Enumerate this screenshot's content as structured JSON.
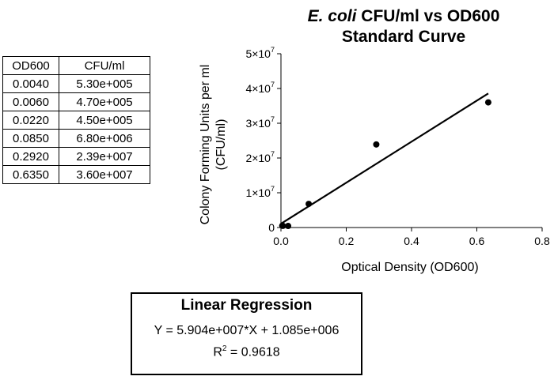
{
  "table": {
    "headers": [
      "OD600",
      "CFU/ml"
    ],
    "rows": [
      [
        "0.0040",
        "5.30e+005"
      ],
      [
        "0.0060",
        "4.70e+005"
      ],
      [
        "0.0220",
        "4.50e+005"
      ],
      [
        "0.0850",
        "6.80e+006"
      ],
      [
        "0.2920",
        "2.39e+007"
      ],
      [
        "0.6350",
        "3.60e+007"
      ]
    ]
  },
  "chart_data": {
    "type": "scatter",
    "title_italic": "E. coli",
    "title_rest": " CFU/ml vs OD600",
    "title_line2": "Standard Curve",
    "xlabel": "Optical Density (OD600)",
    "ylabel_line1": "Colony Forming Units per ml",
    "ylabel_line2": "(CFU/ml)",
    "x": [
      0.004,
      0.006,
      0.022,
      0.085,
      0.292,
      0.635
    ],
    "y": [
      530000,
      470000,
      450000,
      6800000,
      23900000,
      36000000
    ],
    "xlim": [
      0,
      0.8
    ],
    "ylim": [
      0,
      50000000
    ],
    "xticks": [
      0,
      0.2,
      0.4,
      0.6,
      0.8
    ],
    "xtick_labels": [
      "0.0",
      "0.2",
      "0.4",
      "0.6",
      "0.8"
    ],
    "yticks": [
      0,
      10000000,
      20000000,
      30000000,
      40000000,
      50000000
    ],
    "ytick_labels": [
      {
        "mantissa": "0",
        "exp": ""
      },
      {
        "mantissa": "1×10",
        "exp": "7"
      },
      {
        "mantissa": "2×10",
        "exp": "7"
      },
      {
        "mantissa": "3×10",
        "exp": "7"
      },
      {
        "mantissa": "4×10",
        "exp": "7"
      },
      {
        "mantissa": "5×10",
        "exp": "7"
      }
    ],
    "regression": {
      "slope": 59040000,
      "intercept": 1085000,
      "x_range": [
        0,
        0.635
      ]
    },
    "grid": false,
    "marker_color": "#000000"
  },
  "regression_box": {
    "title": "Linear Regression",
    "equation": "Y = 5.904e+007*X + 1.085e+006",
    "r2_label": "R",
    "r2_exp": "2",
    "r2_value": " = 0.9618"
  }
}
